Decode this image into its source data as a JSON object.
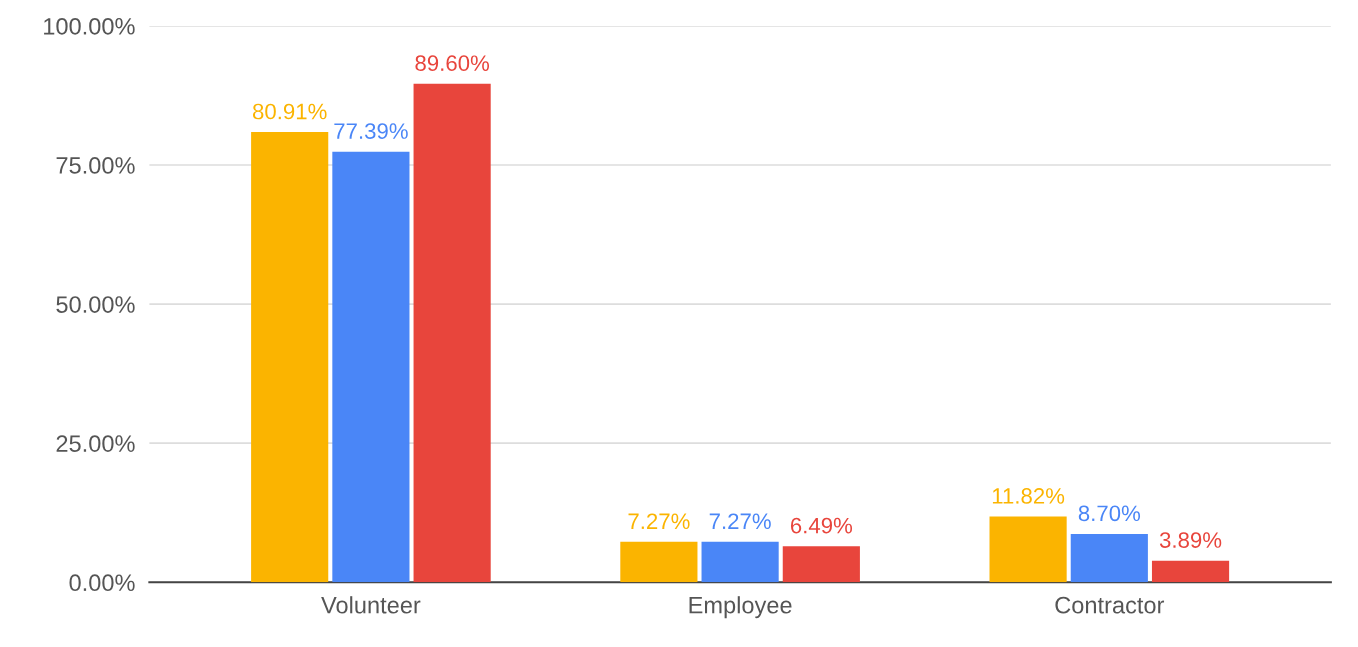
{
  "chart_data": {
    "type": "bar",
    "categories": [
      "Volunteer",
      "Employee",
      "Contractor"
    ],
    "series": [
      {
        "color": "#fbb400",
        "values": [
          80.91,
          7.27,
          11.82
        ],
        "value_labels": [
          "80.91%",
          "7.27%",
          "11.82%"
        ]
      },
      {
        "color": "#4a86f7",
        "values": [
          77.39,
          7.27,
          8.7
        ],
        "value_labels": [
          "77.39%",
          "7.27%",
          "8.70%"
        ]
      },
      {
        "color": "#e8453c",
        "values": [
          89.6,
          6.49,
          3.89
        ],
        "value_labels": [
          "89.60%",
          "6.49%",
          "3.89%"
        ]
      }
    ],
    "ylim": [
      0,
      100
    ],
    "yticks": [
      {
        "value": 0,
        "label": "0.00%"
      },
      {
        "value": 25,
        "label": "25.00%"
      },
      {
        "value": 50,
        "label": "50.00%"
      },
      {
        "value": 75,
        "label": "75.00%"
      },
      {
        "value": 100,
        "label": "100.00%"
      }
    ],
    "grid": "y",
    "legend": false
  }
}
